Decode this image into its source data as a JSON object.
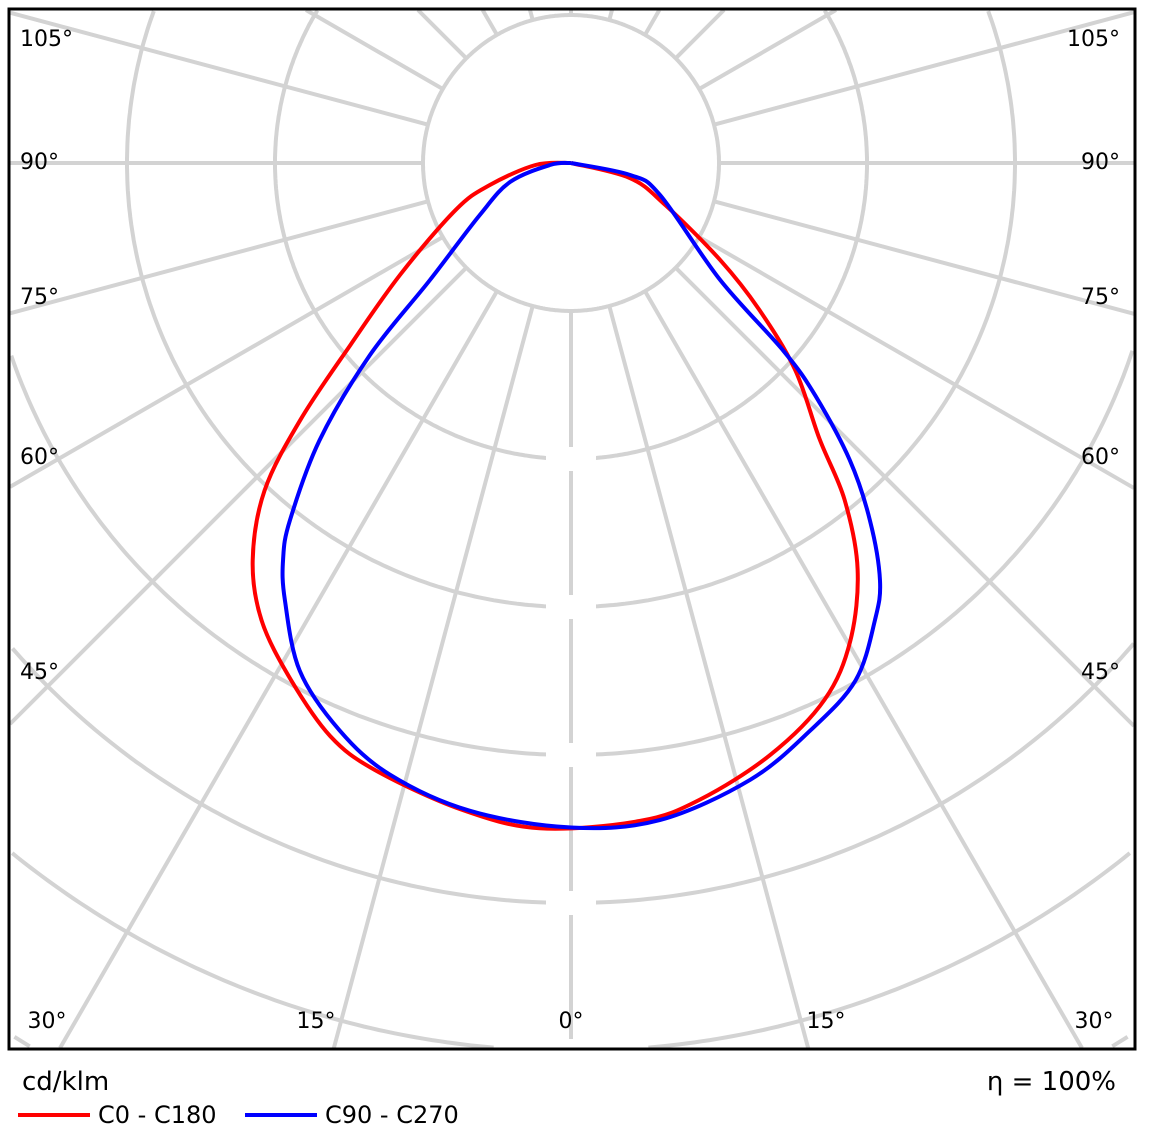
{
  "chart_data": {
    "type": "polar-line",
    "unit_label": "cd/klm",
    "efficiency_label": "η = 100%",
    "angle_labels": {
      "left": [
        "105°",
        "90°",
        "75°",
        "60°",
        "45°"
      ],
      "right": [
        "105°",
        "90°",
        "75°",
        "60°",
        "45°"
      ],
      "bottom": [
        "30°",
        "15°",
        "0°",
        "15°",
        "30°"
      ]
    },
    "grid": true,
    "grid_spoke_step_deg": 15,
    "ring_count": 7,
    "legend_placement": "bottom-left",
    "series": [
      {
        "name": "C0 - C180",
        "color": "#ff0000",
        "points": [
          [
            -90,
            0
          ],
          [
            -86.8,
            0.24
          ],
          [
            -74.8,
            0.57
          ],
          [
            -67.9,
            0.84
          ],
          [
            -56.8,
            1.38
          ],
          [
            -50.5,
            1.93
          ],
          [
            -46.5,
            2.52
          ],
          [
            -43.1,
            3.03
          ],
          [
            -38.7,
            3.44
          ],
          [
            -34.1,
            3.73
          ],
          [
            -28.5,
            3.97
          ],
          [
            -22.8,
            4.2
          ],
          [
            -17.9,
            4.31
          ],
          [
            -9.7,
            4.43
          ],
          [
            -2.7,
            4.5
          ],
          [
            6,
            4.47
          ],
          [
            11.4,
            4.39
          ],
          [
            18.6,
            4.22
          ],
          [
            25.3,
            4.01
          ],
          [
            30.3,
            3.74
          ],
          [
            35.2,
            3.36
          ],
          [
            39.1,
            2.93
          ],
          [
            42,
            2.51
          ],
          [
            47.3,
            2.06
          ],
          [
            52.1,
            1.61
          ],
          [
            57,
            1.2
          ],
          [
            65.9,
            0.7
          ],
          [
            75.7,
            0.41
          ],
          [
            90,
            0
          ]
        ]
      },
      {
        "name": "C90 - C270",
        "color": "#0000ff",
        "points": [
          [
            -90,
            0
          ],
          [
            -84.6,
            0.14
          ],
          [
            -72.7,
            0.43
          ],
          [
            -60.3,
            0.71
          ],
          [
            -50.3,
            1.24
          ],
          [
            -46.3,
            1.88
          ],
          [
            -42.2,
            2.53
          ],
          [
            -38.2,
            3.07
          ],
          [
            -36,
            3.31
          ],
          [
            -33.2,
            3.53
          ],
          [
            -28.1,
            3.89
          ],
          [
            -22.2,
            4.14
          ],
          [
            -16.5,
            4.31
          ],
          [
            -8.9,
            4.43
          ],
          [
            0,
            4.49
          ],
          [
            7.7,
            4.48
          ],
          [
            16.2,
            4.34
          ],
          [
            22.9,
            4.16
          ],
          [
            28.8,
            3.99
          ],
          [
            33.6,
            3.71
          ],
          [
            36.5,
            3.51
          ],
          [
            39.9,
            3.15
          ],
          [
            43.2,
            2.75
          ],
          [
            46.4,
            2.28
          ],
          [
            48.5,
            1.92
          ],
          [
            51.9,
            1.28
          ],
          [
            70.2,
            0.64
          ],
          [
            78.5,
            0.41
          ],
          [
            90,
            0
          ]
        ]
      }
    ]
  }
}
